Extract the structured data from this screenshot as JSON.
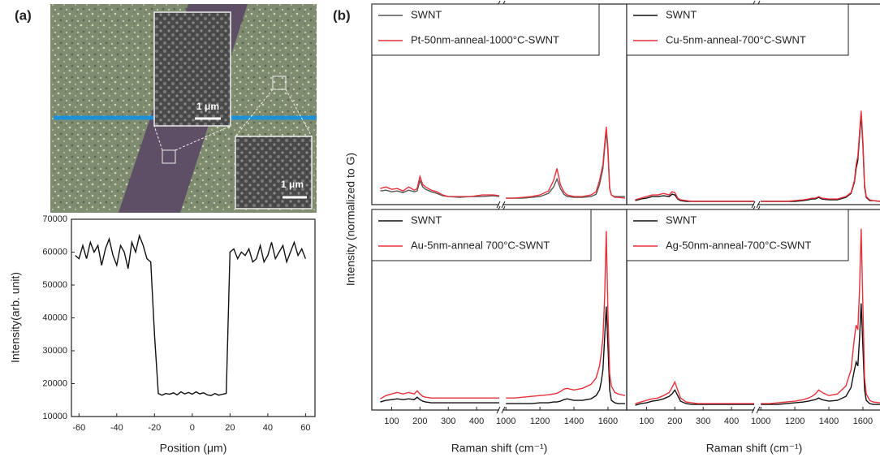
{
  "panel_labels": [
    "(a)",
    "(b)"
  ],
  "micrograph": {
    "scale_bars": [
      "1 μm",
      "1 μm"
    ]
  },
  "chart_data": [
    {
      "type": "line",
      "xlabel": "Position (μm)",
      "ylabel": "Intensity(arb. unit)",
      "x": [
        -62,
        -60,
        -58,
        -56,
        -54,
        -52,
        -50,
        -48,
        -46,
        -44,
        -42,
        -40,
        -38,
        -36,
        -34,
        -32,
        -30,
        -28,
        -26,
        -24,
        -22,
        -20,
        -18,
        -16,
        -14,
        -12,
        -10,
        -8,
        -6,
        -4,
        -2,
        0,
        2,
        4,
        6,
        8,
        10,
        12,
        14,
        16,
        18,
        20,
        22,
        24,
        26,
        28,
        30,
        32,
        34,
        36,
        38,
        40,
        42,
        44,
        46,
        48,
        50,
        52,
        54,
        56,
        58,
        60
      ],
      "series": [
        {
          "color": "#111111",
          "values": [
            59000,
            58000,
            62000,
            58000,
            63000,
            60000,
            62000,
            56000,
            61000,
            64000,
            59000,
            56000,
            62000,
            60000,
            55000,
            63000,
            60000,
            65000,
            62000,
            58000,
            57000,
            35000,
            17000,
            16500,
            17000,
            16800,
            17200,
            16600,
            17500,
            16900,
            17300,
            16800,
            17500,
            16900,
            17200,
            16600,
            16400,
            17000,
            16500,
            16800,
            17000,
            60000,
            61000,
            58000,
            60000,
            59000,
            61000,
            57000,
            58000,
            62000,
            57000,
            59000,
            63000,
            58000,
            60000,
            62000,
            57000,
            60000,
            63000,
            59000,
            61000,
            58000
          ]
        }
      ],
      "xlim": [
        -64,
        65
      ],
      "xticks": [
        -60,
        -40,
        -20,
        0,
        20,
        40,
        60
      ],
      "ylim": [
        10000,
        70000
      ],
      "yticks": [
        10000,
        20000,
        30000,
        40000,
        50000,
        60000,
        70000
      ]
    },
    {
      "type": "line",
      "ylabel": "Intensity (normalized to G)",
      "x": [
        60,
        80,
        100,
        120,
        140,
        160,
        180,
        190,
        200,
        210,
        220,
        240,
        260,
        280,
        300,
        340,
        380,
        420,
        460,
        480,
        1000,
        1050,
        1100,
        1150,
        1200,
        1250,
        1280,
        1300,
        1320,
        1340,
        1360,
        1400,
        1450,
        1500,
        1530,
        1550,
        1560,
        1570,
        1580,
        1590,
        1600,
        1610,
        1620,
        1640,
        1660,
        1700
      ],
      "xlim": [
        30,
        1710
      ],
      "xbreak": [
        480,
        980
      ],
      "ylim": [
        0,
        2.5
      ],
      "series": [
        {
          "name": "SWNT",
          "color": "#555555",
          "values": [
            0.17,
            0.18,
            0.16,
            0.17,
            0.15,
            0.18,
            0.16,
            0.17,
            0.3,
            0.22,
            0.19,
            0.16,
            0.14,
            0.11,
            0.1,
            0.09,
            0.1,
            0.1,
            0.11,
            0.1,
            0.08,
            0.08,
            0.08,
            0.09,
            0.1,
            0.14,
            0.22,
            0.32,
            0.2,
            0.13,
            0.1,
            0.09,
            0.09,
            0.1,
            0.13,
            0.25,
            0.35,
            0.45,
            0.7,
            0.92,
            0.65,
            0.2,
            0.12,
            0.1,
            0.1,
            0.1
          ]
        },
        {
          "name": "Pt-50nm-anneal-1000°C-SWNT",
          "color": "#e8303a",
          "values": [
            0.2,
            0.22,
            0.19,
            0.2,
            0.17,
            0.22,
            0.18,
            0.2,
            0.35,
            0.25,
            0.22,
            0.18,
            0.16,
            0.12,
            0.1,
            0.1,
            0.1,
            0.12,
            0.12,
            0.11,
            0.08,
            0.08,
            0.09,
            0.1,
            0.12,
            0.17,
            0.3,
            0.45,
            0.25,
            0.16,
            0.12,
            0.1,
            0.1,
            0.12,
            0.16,
            0.3,
            0.4,
            0.5,
            0.75,
            0.97,
            0.7,
            0.2,
            0.12,
            0.09,
            0.09,
            0.08
          ]
        }
      ]
    },
    {
      "type": "line",
      "x": [
        60,
        80,
        100,
        120,
        140,
        160,
        180,
        190,
        200,
        210,
        220,
        240,
        260,
        280,
        300,
        340,
        380,
        420,
        460,
        480,
        1000,
        1050,
        1100,
        1150,
        1200,
        1250,
        1280,
        1300,
        1320,
        1340,
        1360,
        1400,
        1450,
        1500,
        1530,
        1550,
        1560,
        1570,
        1580,
        1590,
        1600,
        1610,
        1620,
        1640,
        1660,
        1700
      ],
      "xlim": [
        30,
        1710
      ],
      "xbreak": [
        480,
        980
      ],
      "ylim": [
        0,
        2.5
      ],
      "series": [
        {
          "name": "SWNT",
          "color": "#111111",
          "values": [
            0.05,
            0.07,
            0.08,
            0.1,
            0.1,
            0.11,
            0.1,
            0.13,
            0.12,
            0.07,
            0.05,
            0.04,
            0.04,
            0.04,
            0.04,
            0.04,
            0.04,
            0.04,
            0.04,
            0.04,
            0.04,
            0.04,
            0.04,
            0.04,
            0.04,
            0.05,
            0.06,
            0.07,
            0.07,
            0.09,
            0.07,
            0.06,
            0.06,
            0.09,
            0.14,
            0.28,
            0.45,
            0.55,
            0.85,
            1.12,
            0.75,
            0.22,
            0.09,
            0.05,
            0.05,
            0.04
          ]
        },
        {
          "name": "Cu-5nm-anneal-700°C-SWNT",
          "color": "#e8303a",
          "values": [
            0.06,
            0.08,
            0.1,
            0.12,
            0.12,
            0.14,
            0.12,
            0.16,
            0.15,
            0.08,
            0.06,
            0.05,
            0.04,
            0.04,
            0.04,
            0.04,
            0.04,
            0.04,
            0.04,
            0.04,
            0.04,
            0.04,
            0.04,
            0.04,
            0.05,
            0.06,
            0.07,
            0.08,
            0.08,
            0.1,
            0.08,
            0.07,
            0.07,
            0.1,
            0.15,
            0.3,
            0.5,
            0.6,
            0.9,
            1.17,
            0.8,
            0.25,
            0.1,
            0.06,
            0.05,
            0.04
          ]
        }
      ]
    },
    {
      "type": "line",
      "xlabel": "Raman shift (cm⁻¹)",
      "x": [
        60,
        80,
        100,
        120,
        140,
        160,
        180,
        190,
        200,
        210,
        220,
        240,
        260,
        280,
        300,
        340,
        380,
        420,
        460,
        480,
        1000,
        1050,
        1100,
        1150,
        1200,
        1250,
        1280,
        1300,
        1320,
        1340,
        1360,
        1400,
        1450,
        1500,
        1530,
        1550,
        1560,
        1570,
        1580,
        1590,
        1600,
        1610,
        1620,
        1640,
        1660,
        1700
      ],
      "xlim": [
        30,
        1710
      ],
      "xbreak": [
        480,
        980
      ],
      "ylim": [
        0,
        2.5
      ],
      "xticks": [
        100,
        200,
        300,
        400,
        1000,
        1200,
        1400,
        1600
      ],
      "series": [
        {
          "name": "SWNT",
          "color": "#111111",
          "values": [
            0.1,
            0.12,
            0.13,
            0.14,
            0.13,
            0.14,
            0.13,
            0.16,
            0.13,
            0.11,
            0.1,
            0.09,
            0.09,
            0.09,
            0.09,
            0.09,
            0.09,
            0.09,
            0.09,
            0.09,
            0.08,
            0.08,
            0.08,
            0.08,
            0.09,
            0.09,
            0.1,
            0.1,
            0.11,
            0.13,
            0.14,
            0.12,
            0.12,
            0.14,
            0.18,
            0.25,
            0.35,
            0.5,
            0.9,
            1.29,
            0.8,
            0.25,
            0.12,
            0.09,
            0.08,
            0.08
          ]
        },
        {
          "name": "Au-5nm-anneal 700°C-SWNT",
          "color": "#e8303a",
          "values": [
            0.14,
            0.18,
            0.2,
            0.22,
            0.2,
            0.22,
            0.2,
            0.24,
            0.2,
            0.17,
            0.16,
            0.15,
            0.15,
            0.15,
            0.15,
            0.15,
            0.15,
            0.15,
            0.15,
            0.15,
            0.15,
            0.15,
            0.16,
            0.17,
            0.18,
            0.19,
            0.2,
            0.21,
            0.23,
            0.26,
            0.27,
            0.25,
            0.27,
            0.32,
            0.4,
            0.55,
            0.7,
            0.9,
            1.4,
            2.23,
            1.2,
            0.45,
            0.3,
            0.22,
            0.2,
            0.18
          ]
        }
      ]
    },
    {
      "type": "line",
      "xlabel": "Raman shift (cm⁻¹)",
      "x": [
        60,
        80,
        100,
        120,
        140,
        160,
        180,
        190,
        200,
        210,
        220,
        240,
        260,
        280,
        300,
        340,
        380,
        420,
        460,
        480,
        1000,
        1050,
        1100,
        1150,
        1200,
        1250,
        1280,
        1300,
        1320,
        1340,
        1360,
        1400,
        1450,
        1500,
        1530,
        1550,
        1560,
        1570,
        1580,
        1590,
        1600,
        1610,
        1620,
        1640,
        1660,
        1700
      ],
      "xlim": [
        30,
        1710
      ],
      "xbreak": [
        480,
        980
      ],
      "ylim": [
        0,
        2.5
      ],
      "xticks": [
        100,
        200,
        300,
        400,
        1000,
        1200,
        1400,
        1600
      ],
      "series": [
        {
          "name": "SWNT",
          "color": "#111111",
          "values": [
            0.06,
            0.08,
            0.09,
            0.11,
            0.12,
            0.14,
            0.17,
            0.2,
            0.25,
            0.18,
            0.11,
            0.08,
            0.07,
            0.07,
            0.07,
            0.07,
            0.07,
            0.07,
            0.07,
            0.07,
            0.07,
            0.07,
            0.07,
            0.08,
            0.09,
            0.1,
            0.11,
            0.12,
            0.13,
            0.15,
            0.13,
            0.11,
            0.12,
            0.17,
            0.28,
            0.5,
            0.6,
            0.55,
            0.9,
            1.33,
            0.8,
            0.25,
            0.12,
            0.08,
            0.07,
            0.07
          ]
        },
        {
          "name": "Ag-50nm-anneal-700°C-SWNT",
          "color": "#e8303a",
          "values": [
            0.08,
            0.1,
            0.12,
            0.14,
            0.15,
            0.18,
            0.22,
            0.28,
            0.35,
            0.25,
            0.15,
            0.1,
            0.09,
            0.08,
            0.08,
            0.08,
            0.08,
            0.08,
            0.08,
            0.08,
            0.08,
            0.08,
            0.09,
            0.1,
            0.11,
            0.13,
            0.15,
            0.17,
            0.2,
            0.25,
            0.22,
            0.18,
            0.2,
            0.3,
            0.5,
            0.9,
            1.06,
            1.0,
            1.5,
            2.26,
            1.3,
            0.4,
            0.2,
            0.12,
            0.1,
            0.09
          ]
        }
      ]
    }
  ]
}
